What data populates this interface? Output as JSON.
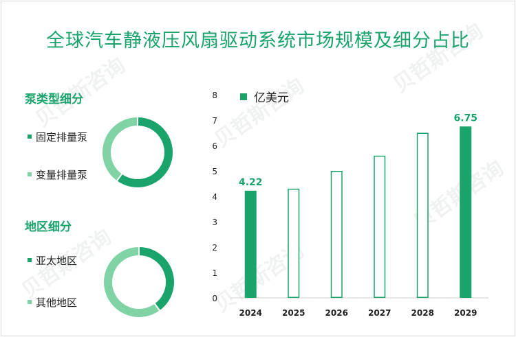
{
  "title": "全球汽车静液压风扇驱动系统市场规模及细分占比",
  "colors": {
    "accent": "#1aa36b",
    "light": "#7fd3a4",
    "bar_outline": "#1aa36b"
  },
  "pump_section": {
    "title": "泵类型细分",
    "items": [
      {
        "label": "固定排量泵",
        "color": "#1aa36b",
        "share": 0.6
      },
      {
        "label": "变量排量泵",
        "color": "#7fd3a4",
        "share": 0.4
      }
    ]
  },
  "region_section": {
    "title": "地区细分",
    "items": [
      {
        "label": "亚太地区",
        "color": "#1aa36b",
        "share": 0.4
      },
      {
        "label": "其他地区",
        "color": "#7fd3a4",
        "share": 0.6
      }
    ]
  },
  "chart_data": {
    "type": "bar",
    "title": "",
    "series_name": "亿美元",
    "categories": [
      "2024",
      "2025",
      "2026",
      "2027",
      "2028",
      "2029"
    ],
    "values": [
      4.22,
      4.3,
      5.0,
      5.6,
      6.5,
      6.75
    ],
    "filled": [
      true,
      false,
      false,
      false,
      false,
      true
    ],
    "labels": [
      "4.22",
      "",
      "",
      "",
      "",
      "6.75"
    ],
    "yticks": [
      "0",
      "1",
      "2",
      "3",
      "4",
      "5",
      "6",
      "7",
      "8"
    ],
    "ylim": [
      0,
      8
    ],
    "xlabel": "",
    "ylabel": ""
  }
}
